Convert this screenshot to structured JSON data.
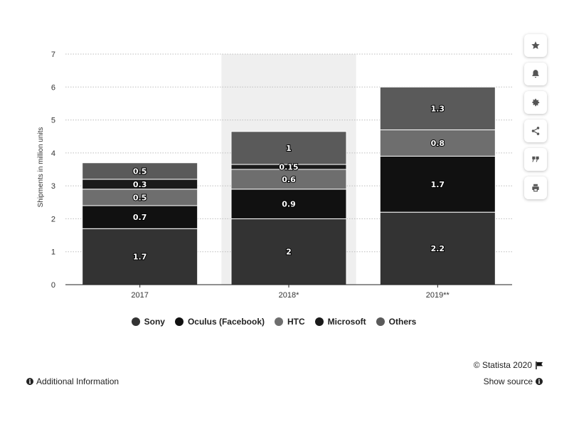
{
  "chart_data": {
    "type": "bar",
    "stacked": true,
    "categories": [
      "2017",
      "2018*",
      "2019**"
    ],
    "series": [
      {
        "name": "Sony",
        "values": [
          1.7,
          2,
          2.2
        ],
        "color": "#333333",
        "labels": [
          "1.7",
          "2",
          "2.2"
        ]
      },
      {
        "name": "Oculus (Facebook)",
        "values": [
          0.7,
          0.9,
          1.7
        ],
        "color": "#111111",
        "labels": [
          "0.7",
          "0.9",
          "1.7"
        ]
      },
      {
        "name": "HTC",
        "values": [
          0.5,
          0.6,
          0.8
        ],
        "color": "#6e6e6e",
        "labels": [
          "0.5",
          "0.6",
          "0.8"
        ]
      },
      {
        "name": "Microsoft",
        "values": [
          0.3,
          0.15,
          0
        ],
        "color": "#1a1a1a",
        "labels": [
          "0.3",
          "0.15",
          ""
        ]
      },
      {
        "name": "Others",
        "values": [
          0.5,
          1,
          1.3
        ],
        "color": "#5a5a5a",
        "labels": [
          "0.5",
          "1",
          "1.3"
        ]
      }
    ],
    "ylabel": "Shipments in million units",
    "xlabel": "",
    "ylim": [
      0,
      7
    ],
    "yticks": [
      "0",
      "1",
      "2",
      "3",
      "4",
      "5",
      "6",
      "7"
    ],
    "highlighted_category": "2018*",
    "grid": true,
    "legend_position": "bottom"
  },
  "toolbar": {
    "icons": [
      "star-icon",
      "bell-icon",
      "gear-icon",
      "share-icon",
      "quote-icon",
      "print-icon"
    ]
  },
  "credit": {
    "text": "© Statista 2020"
  },
  "footer": {
    "additional_info": "Additional Information",
    "show_source": "Show source"
  },
  "colors": {
    "highlight_band": "#efefef",
    "grid": "#bdbdbd"
  }
}
